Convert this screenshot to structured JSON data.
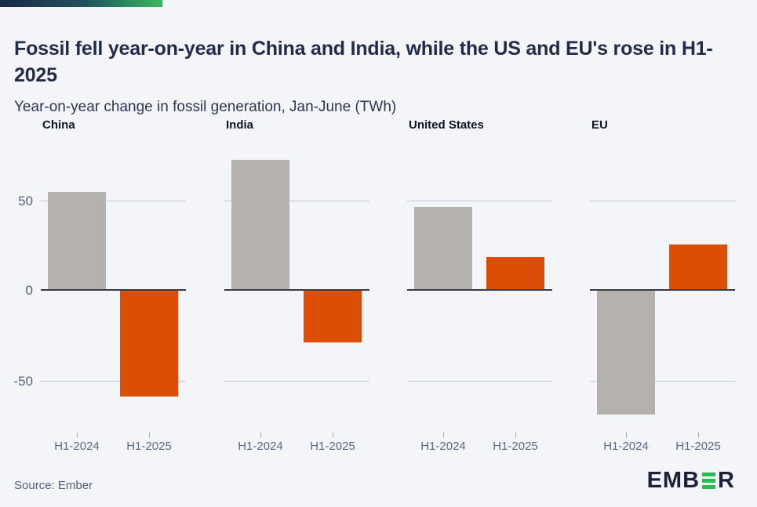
{
  "accent_bar": {
    "start_color": "#1a2847",
    "end_color": "#3cb95c"
  },
  "header": {
    "title": "Fossil fell year-on-year in China and India, while the US and EU's rose in H1-2025",
    "subtitle": "Year-on-year change in fossil generation, Jan-June (TWh)"
  },
  "chart_data": {
    "type": "bar",
    "layout": "small_multiples",
    "title": "Fossil fell year-on-year in China and India, while the US and EU's rose in H1-2025",
    "ylabel": "Year-on-year change in fossil generation, Jan-June (TWh)",
    "categories": [
      "H1-2024",
      "H1-2025"
    ],
    "panels": [
      {
        "title": "China",
        "values": [
          54,
          -59
        ]
      },
      {
        "title": "India",
        "values": [
          72,
          -29
        ]
      },
      {
        "title": "United States",
        "values": [
          46,
          18
        ]
      },
      {
        "title": "EU",
        "values": [
          -69,
          25
        ]
      }
    ],
    "yticks": [
      50,
      0,
      -50
    ],
    "ytick_labels": [
      "50",
      "0",
      "-50"
    ],
    "ylim": [
      -80,
      85
    ],
    "grid": "horizontal",
    "legend": "none",
    "series_colors": {
      "H1-2024": "#b5b1ae",
      "H1-2025": "#dc4e05"
    },
    "gridline_color": "#c4cad9",
    "zero_line_color": "#363b44"
  },
  "footer": {
    "source": "Source: Ember",
    "logo": {
      "prefix": "EMB",
      "suffix": "R",
      "bars_color": "#21c050"
    }
  }
}
